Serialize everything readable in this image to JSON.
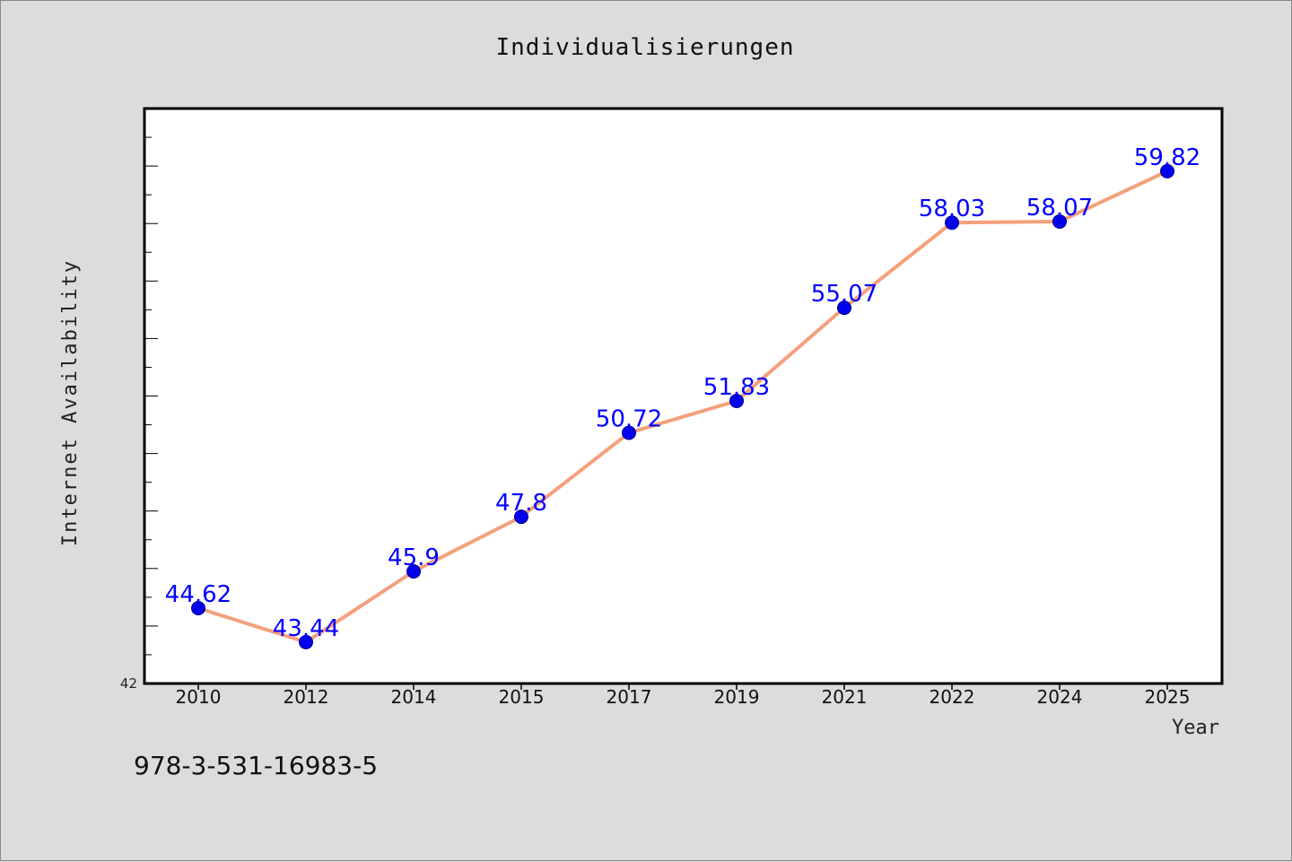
{
  "chart_data": {
    "type": "line",
    "title": "Individualisierungen",
    "xlabel": "Year",
    "ylabel": "Internet Availability",
    "categories": [
      "2010",
      "2012",
      "2014",
      "2015",
      "2017",
      "2019",
      "2021",
      "2022",
      "2024",
      "2025"
    ],
    "series": [
      {
        "values": [
          44.62,
          43.44,
          45.9,
          47.8,
          50.72,
          51.83,
          55.07,
          58.03,
          58.07,
          59.82
        ],
        "data_labels": [
          "44.62",
          "43.44",
          "45.9",
          "47.8",
          "50.72",
          "51.83",
          "55.07",
          "58.03",
          "58.07",
          "59.82"
        ]
      }
    ],
    "ylim": [
      42,
      62
    ],
    "y_tick_label": "42",
    "grid": false,
    "colors": {
      "line": "#f4a07c",
      "marker": "#0000ee",
      "data_label": "#0000ff",
      "plot_bg": "#ffffff",
      "page_bg": "#dcdcdc"
    }
  },
  "footnote": "978-3-531-16983-5"
}
